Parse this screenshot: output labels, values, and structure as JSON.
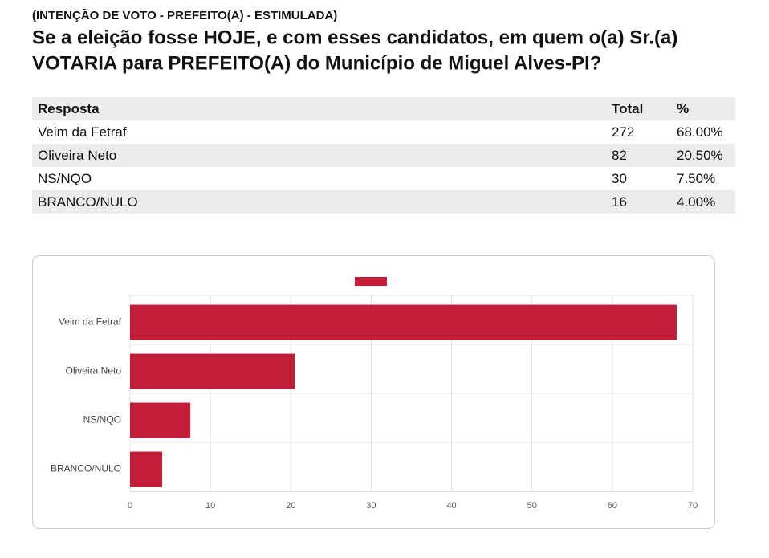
{
  "header": {
    "kicker": "(INTENÇÃO DE VOTO - PREFEITO(A) - ESTIMULADA)",
    "question": [
      "Se a eleição fosse HOJE, e com esses candidatos, em quem o(a) Sr.(a)",
      "VOTARIA para PREFEITO(A) do Município de Miguel Alves-PI?"
    ]
  },
  "table": {
    "columns": [
      "Resposta",
      "Total",
      "%"
    ],
    "rows": [
      [
        "Veim da Fetraf",
        "272",
        "68.00%"
      ],
      [
        "Oliveira Neto",
        "82",
        "20.50%"
      ],
      [
        "NS/NQO",
        "30",
        "7.50%"
      ],
      [
        "BRANCO/NULO",
        "16",
        "4.00%"
      ]
    ]
  },
  "chart_data": {
    "type": "hbar",
    "categories": [
      "Veim da Fetraf",
      "Oliveira Neto",
      "NS/NQO",
      "BRANCO/NULO"
    ],
    "values": [
      68,
      20.5,
      7.5,
      4
    ],
    "color": "#c21e3a",
    "xlim": [
      0,
      70
    ],
    "xticks": [
      0,
      10,
      20,
      30,
      40,
      50,
      60,
      70
    ],
    "grid": true
  }
}
